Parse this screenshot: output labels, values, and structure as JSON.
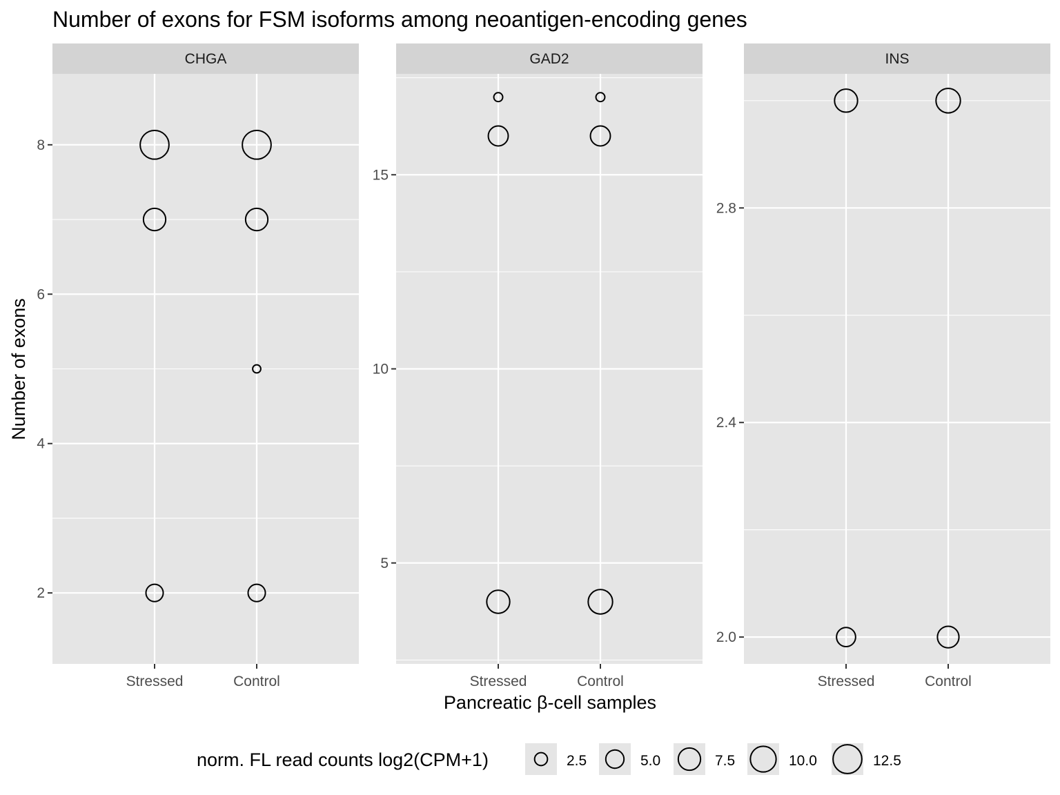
{
  "chart_data": {
    "type": "scatter",
    "title": "Number of exons for FSM isoforms among neoantigen-encoding genes",
    "xlabel": "Pancreatic β-cell samples",
    "ylabel": "Number of exons",
    "categories": [
      "Stressed",
      "Control"
    ],
    "grid": true,
    "legend_position": "bottom",
    "legend": {
      "title": "norm. FL read counts log2(CPM+1)",
      "breaks": [
        2.5,
        5.0,
        7.5,
        10.0,
        12.5
      ],
      "labels": [
        "2.5",
        "5.0",
        "7.5",
        "10.0",
        "12.5"
      ]
    },
    "panels": [
      {
        "name": "CHGA",
        "ylim": [
          1.05,
          8.95
        ],
        "yticks": [
          2,
          4,
          6,
          8
        ],
        "ytick_labels": [
          "2",
          "4",
          "6",
          "8"
        ],
        "points": [
          {
            "x": "Stressed",
            "y": 8,
            "size": 12.5
          },
          {
            "x": "Stressed",
            "y": 7,
            "size": 7.5
          },
          {
            "x": "Stressed",
            "y": 2,
            "size": 4.5
          },
          {
            "x": "Control",
            "y": 8,
            "size": 12.5
          },
          {
            "x": "Control",
            "y": 7,
            "size": 7.5
          },
          {
            "x": "Control",
            "y": 5,
            "size": 1.0
          },
          {
            "x": "Control",
            "y": 2,
            "size": 4.5
          }
        ]
      },
      {
        "name": "GAD2",
        "ylim": [
          2.4,
          17.6
        ],
        "yticks": [
          5,
          10,
          15
        ],
        "ytick_labels": [
          "5",
          "10",
          "15"
        ],
        "points": [
          {
            "x": "Stressed",
            "y": 17,
            "size": 1.2
          },
          {
            "x": "Stressed",
            "y": 16,
            "size": 6.0
          },
          {
            "x": "Stressed",
            "y": 4,
            "size": 8.0
          },
          {
            "x": "Control",
            "y": 17,
            "size": 1.2
          },
          {
            "x": "Control",
            "y": 16,
            "size": 6.0
          },
          {
            "x": "Control",
            "y": 4,
            "size": 9.0
          }
        ]
      },
      {
        "name": "INS",
        "ylim": [
          1.95,
          3.05
        ],
        "yticks": [
          2.0,
          2.4,
          2.8
        ],
        "ytick_labels": [
          "2.0",
          "2.4",
          "2.8"
        ],
        "points": [
          {
            "x": "Stressed",
            "y": 3,
            "size": 8.0
          },
          {
            "x": "Stressed",
            "y": 2,
            "size": 5.5
          },
          {
            "x": "Control",
            "y": 3,
            "size": 9.0
          },
          {
            "x": "Control",
            "y": 2,
            "size": 7.0
          }
        ]
      }
    ]
  },
  "colors": {
    "panel_background": "#e5e5e5",
    "strip_background": "#d3d3d3",
    "grid": "#ffffff",
    "point_stroke": "#000000"
  }
}
